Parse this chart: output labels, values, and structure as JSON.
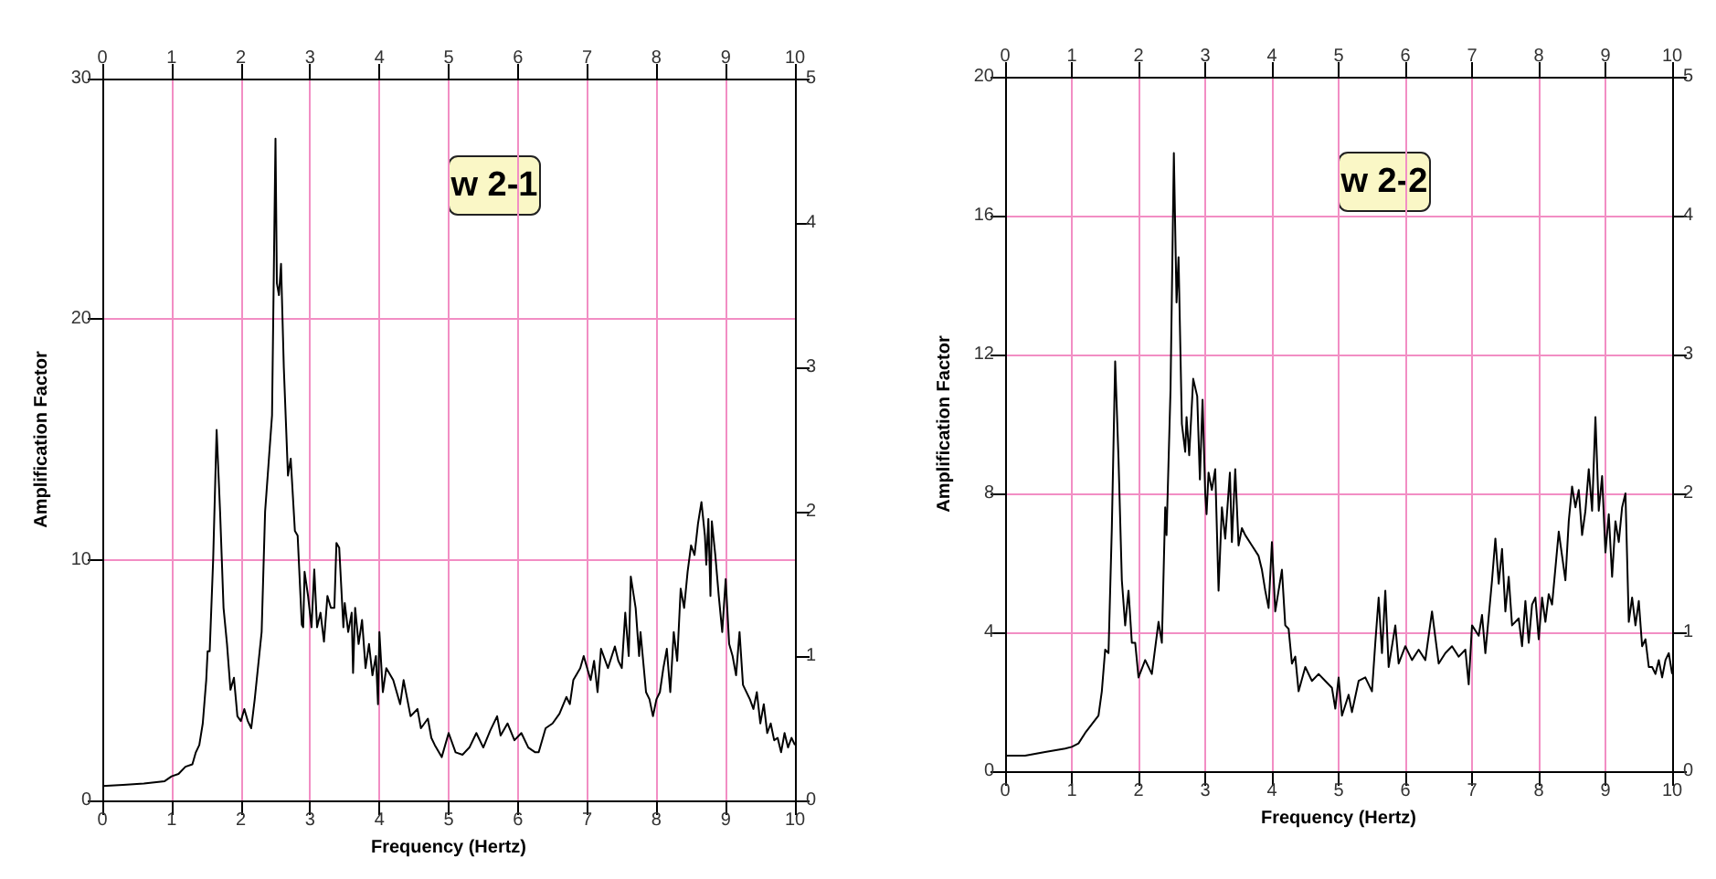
{
  "chart_data": [
    {
      "type": "line",
      "xlabel": "Frequency (Hertz)",
      "ylabel": "Amplification Factor",
      "annotations": [
        "w 2-1"
      ],
      "grid": true,
      "xlim": [
        0,
        10
      ],
      "xticks": [
        0,
        1,
        2,
        3,
        4,
        5,
        6,
        7,
        8,
        9,
        10
      ],
      "x2lim": [
        0,
        10
      ],
      "x2ticks": [
        0,
        1,
        2,
        3,
        4,
        5,
        6,
        7,
        8,
        9,
        10
      ],
      "ylim": [
        0,
        30
      ],
      "yticks": [
        0,
        10,
        20,
        30
      ],
      "y2lim": [
        0,
        5
      ],
      "y2ticks": [
        0,
        1,
        2,
        3,
        4,
        5
      ],
      "series": [
        {
          "color": "#000000",
          "x": [
            0,
            0.3,
            0.6,
            0.9,
            1.0,
            1.1,
            1.2,
            1.3,
            1.35,
            1.4,
            1.45,
            1.5,
            1.52,
            1.55,
            1.6,
            1.65,
            1.7,
            1.75,
            1.8,
            1.85,
            1.9,
            1.95,
            2.0,
            2.05,
            2.1,
            2.15,
            2.2,
            2.3,
            2.35,
            2.45,
            2.5,
            2.52,
            2.55,
            2.58,
            2.62,
            2.68,
            2.72,
            2.78,
            2.82,
            2.88,
            2.9,
            2.92,
            2.97,
            3.02,
            3.06,
            3.1,
            3.15,
            3.2,
            3.25,
            3.3,
            3.35,
            3.38,
            3.42,
            3.48,
            3.5,
            3.55,
            3.6,
            3.62,
            3.65,
            3.7,
            3.75,
            3.8,
            3.85,
            3.9,
            3.95,
            3.98,
            4.0,
            4.05,
            4.1,
            4.2,
            4.3,
            4.35,
            4.45,
            4.55,
            4.6,
            4.7,
            4.75,
            4.8,
            4.9,
            5.0,
            5.1,
            5.2,
            5.3,
            5.4,
            5.5,
            5.6,
            5.7,
            5.75,
            5.85,
            5.95,
            6.05,
            6.15,
            6.25,
            6.3,
            6.4,
            6.5,
            6.6,
            6.7,
            6.75,
            6.8,
            6.9,
            6.95,
            7.0,
            7.05,
            7.1,
            7.15,
            7.2,
            7.3,
            7.4,
            7.45,
            7.5,
            7.55,
            7.6,
            7.63,
            7.7,
            7.75,
            7.77,
            7.85,
            7.9,
            7.95,
            8.0,
            8.05,
            8.1,
            8.15,
            8.2,
            8.25,
            8.3,
            8.35,
            8.4,
            8.45,
            8.5,
            8.55,
            8.6,
            8.65,
            8.7,
            8.72,
            8.75,
            8.78,
            8.8,
            8.85,
            8.9,
            8.95,
            9.0,
            9.05,
            9.1,
            9.15,
            9.2,
            9.25,
            9.35,
            9.4,
            9.45,
            9.5,
            9.55,
            9.6,
            9.65,
            9.7,
            9.75,
            9.8,
            9.85,
            9.9,
            9.95,
            10.0
          ],
          "values": [
            0.6,
            0.65,
            0.7,
            0.8,
            1.0,
            1.1,
            1.4,
            1.5,
            2.0,
            2.3,
            3.2,
            5.0,
            6.2,
            6.2,
            10,
            15.4,
            12,
            8,
            6.5,
            4.6,
            5.1,
            3.5,
            3.3,
            3.8,
            3.3,
            3.0,
            4.2,
            7.0,
            12,
            16,
            27.5,
            21.5,
            21,
            22.3,
            18,
            13.5,
            14.2,
            11.2,
            11,
            7.3,
            7.2,
            9.5,
            8.5,
            7.2,
            9.6,
            7.2,
            7.8,
            6.6,
            8.5,
            8.0,
            8.0,
            10.7,
            10.5,
            7.2,
            8.2,
            7.0,
            7.8,
            5.3,
            8.0,
            6.5,
            7.5,
            5.5,
            6.5,
            5.2,
            6.0,
            4.0,
            7.0,
            4.5,
            5.5,
            5.0,
            4.0,
            5.0,
            3.5,
            3.8,
            3.0,
            3.4,
            2.6,
            2.3,
            1.8,
            2.8,
            2.0,
            1.9,
            2.2,
            2.8,
            2.2,
            2.9,
            3.5,
            2.7,
            3.2,
            2.5,
            2.8,
            2.2,
            2.0,
            2.0,
            3.0,
            3.2,
            3.6,
            4.3,
            4.0,
            5.0,
            5.5,
            6.0,
            5.5,
            5.0,
            5.8,
            4.5,
            6.3,
            5.5,
            6.4,
            5.8,
            5.5,
            7.8,
            6.0,
            9.3,
            8.0,
            6.0,
            7.0,
            4.5,
            4.2,
            3.5,
            4.2,
            4.5,
            5.5,
            6.3,
            4.5,
            7.0,
            5.8,
            8.8,
            8.0,
            9.5,
            10.6,
            10.2,
            11.5,
            12.4,
            11.0,
            9.8,
            11.7,
            8.5,
            11.6,
            10.2,
            8.5,
            7.0,
            9.2,
            6.5,
            6.0,
            5.2,
            7.0,
            4.8,
            4.2,
            3.8,
            4.5,
            3.2,
            4.0,
            2.8,
            3.2,
            2.5,
            2.6,
            2.0,
            2.8,
            2.2,
            2.6,
            2.3
          ]
        }
      ]
    },
    {
      "type": "line",
      "xlabel": "Frequency (Hertz)",
      "ylabel": "Amplification Factor",
      "annotations": [
        "w 2-2"
      ],
      "grid": true,
      "xlim": [
        0,
        10
      ],
      "xticks": [
        0,
        1,
        2,
        3,
        4,
        5,
        6,
        7,
        8,
        9,
        10
      ],
      "x2lim": [
        0,
        10
      ],
      "x2ticks": [
        0,
        1,
        2,
        3,
        4,
        5,
        6,
        7,
        8,
        9,
        10
      ],
      "ylim": [
        0,
        20
      ],
      "yticks": [
        0,
        4,
        8,
        12,
        16,
        20
      ],
      "y2lim": [
        0,
        5
      ],
      "y2ticks": [
        0,
        1,
        2,
        3,
        4,
        5
      ],
      "series": [
        {
          "color": "#000000",
          "x": [
            0,
            0.3,
            0.6,
            0.9,
            1.0,
            1.1,
            1.2,
            1.3,
            1.4,
            1.45,
            1.5,
            1.55,
            1.6,
            1.65,
            1.7,
            1.75,
            1.8,
            1.85,
            1.9,
            1.95,
            2.0,
            2.1,
            2.2,
            2.3,
            2.35,
            2.4,
            2.42,
            2.48,
            2.53,
            2.57,
            2.6,
            2.65,
            2.7,
            2.72,
            2.76,
            2.82,
            2.88,
            2.92,
            2.96,
            3.0,
            3.02,
            3.05,
            3.1,
            3.15,
            3.2,
            3.25,
            3.3,
            3.37,
            3.4,
            3.45,
            3.5,
            3.55,
            3.6,
            3.7,
            3.8,
            3.85,
            3.9,
            3.95,
            4.0,
            4.05,
            4.15,
            4.2,
            4.25,
            4.3,
            4.35,
            4.4,
            4.5,
            4.6,
            4.7,
            4.8,
            4.9,
            4.95,
            5.0,
            5.05,
            5.15,
            5.2,
            5.3,
            5.4,
            5.5,
            5.55,
            5.6,
            5.65,
            5.7,
            5.75,
            5.85,
            5.9,
            6.0,
            6.1,
            6.2,
            6.3,
            6.4,
            6.5,
            6.6,
            6.7,
            6.8,
            6.9,
            6.95,
            7.0,
            7.1,
            7.15,
            7.2,
            7.3,
            7.35,
            7.4,
            7.45,
            7.5,
            7.55,
            7.6,
            7.7,
            7.75,
            7.8,
            7.85,
            7.9,
            7.95,
            8.0,
            8.05,
            8.1,
            8.15,
            8.2,
            8.3,
            8.35,
            8.4,
            8.45,
            8.5,
            8.55,
            8.6,
            8.65,
            8.7,
            8.75,
            8.8,
            8.85,
            8.9,
            8.95,
            9.0,
            9.05,
            9.1,
            9.15,
            9.2,
            9.25,
            9.3,
            9.35,
            9.4,
            9.45,
            9.5,
            9.55,
            9.6,
            9.65,
            9.7,
            9.75,
            9.8,
            9.85,
            9.9,
            9.95,
            10.0
          ],
          "values": [
            0.45,
            0.45,
            0.55,
            0.65,
            0.7,
            0.8,
            1.1,
            1.35,
            1.6,
            2.3,
            3.5,
            3.4,
            7,
            11.8,
            9,
            5.5,
            4.2,
            5.2,
            3.7,
            3.7,
            2.7,
            3.2,
            2.8,
            4.3,
            3.7,
            7.6,
            6.8,
            11,
            17.8,
            13.5,
            14.8,
            10.0,
            9.2,
            10.2,
            9.1,
            11.3,
            10.8,
            8.4,
            10.7,
            8.0,
            7.4,
            8.6,
            8.1,
            8.7,
            5.2,
            7.6,
            6.7,
            8.6,
            6.6,
            8.7,
            6.5,
            7.0,
            6.8,
            6.5,
            6.2,
            5.8,
            5.2,
            4.7,
            6.6,
            4.6,
            5.8,
            4.2,
            4.1,
            3.1,
            3.3,
            2.3,
            3.0,
            2.6,
            2.8,
            2.6,
            2.4,
            1.8,
            2.7,
            1.6,
            2.2,
            1.7,
            2.6,
            2.7,
            2.3,
            3.7,
            5.0,
            3.4,
            5.2,
            3.0,
            4.2,
            3.1,
            3.6,
            3.2,
            3.5,
            3.2,
            4.6,
            3.1,
            3.4,
            3.6,
            3.3,
            3.5,
            2.5,
            4.2,
            3.9,
            4.5,
            3.4,
            5.5,
            6.7,
            5.4,
            6.4,
            4.6,
            5.6,
            4.2,
            4.4,
            3.6,
            4.9,
            3.7,
            4.8,
            5.0,
            3.8,
            5.0,
            4.3,
            5.1,
            4.8,
            6.9,
            6.2,
            5.5,
            7.2,
            8.2,
            7.6,
            8.1,
            6.8,
            7.5,
            8.7,
            7.5,
            10.2,
            7.5,
            8.5,
            6.3,
            7.4,
            5.6,
            7.2,
            6.6,
            7.6,
            8.0,
            4.3,
            5.0,
            4.2,
            4.9,
            3.6,
            3.8,
            3.0,
            3.0,
            2.8,
            3.2,
            2.7,
            3.2,
            3.4,
            2.8
          ]
        }
      ]
    }
  ]
}
